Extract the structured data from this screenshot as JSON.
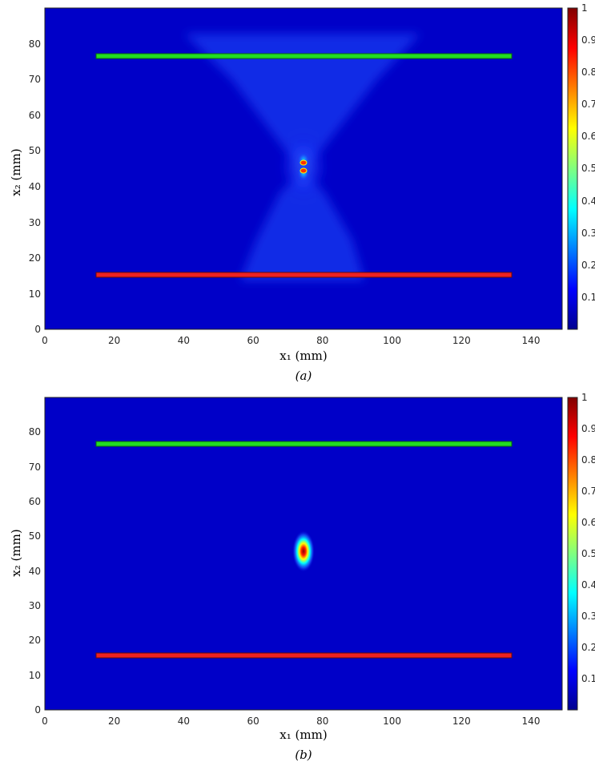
{
  "chart_data": [
    {
      "type": "heatmap",
      "caption": "(a)",
      "xlabel": "x₁ (mm)",
      "ylabel": "x₂ (mm)",
      "xlim": [
        0,
        149
      ],
      "ylim": [
        0,
        90
      ],
      "xticks": [
        0,
        20,
        40,
        60,
        80,
        100,
        120,
        140
      ],
      "yticks": [
        0,
        10,
        20,
        30,
        40,
        50,
        60,
        70,
        80
      ],
      "colorbar": {
        "range": [
          0,
          1
        ],
        "ticks": [
          0.1,
          0.2,
          0.3,
          0.4,
          0.5,
          0.6,
          0.7,
          0.8,
          0.9,
          1
        ],
        "colormap": "jet"
      },
      "arrays": [
        {
          "color": "#22cc22",
          "x": [
            15,
            134.5
          ],
          "y": 76.3
        },
        {
          "color": "#dd2222",
          "x": [
            15,
            134.5
          ],
          "y": 15.3
        }
      ],
      "peak": {
        "x": 74.7,
        "y": 45.3,
        "value": 1
      }
    },
    {
      "type": "heatmap",
      "caption": "(b)",
      "xlabel": "x₁ (mm)",
      "ylabel": "x₂ (mm)",
      "xlim": [
        0,
        149
      ],
      "ylim": [
        0,
        90
      ],
      "xticks": [
        0,
        20,
        40,
        60,
        80,
        100,
        120,
        140
      ],
      "yticks": [
        0,
        10,
        20,
        30,
        40,
        50,
        60,
        70,
        80
      ],
      "colorbar": {
        "range": [
          0,
          1
        ],
        "ticks": [
          0.1,
          0.2,
          0.3,
          0.4,
          0.5,
          0.6,
          0.7,
          0.8,
          0.9,
          1
        ],
        "colormap": "jet"
      },
      "arrays": [
        {
          "color": "#22cc22",
          "x": [
            15,
            134.5
          ],
          "y": 76.3
        },
        {
          "color": "#dd2222",
          "x": [
            15,
            134.5
          ],
          "y": 15.3
        }
      ],
      "peak": {
        "x": 74.7,
        "y": 45.3,
        "value": 1
      }
    }
  ]
}
